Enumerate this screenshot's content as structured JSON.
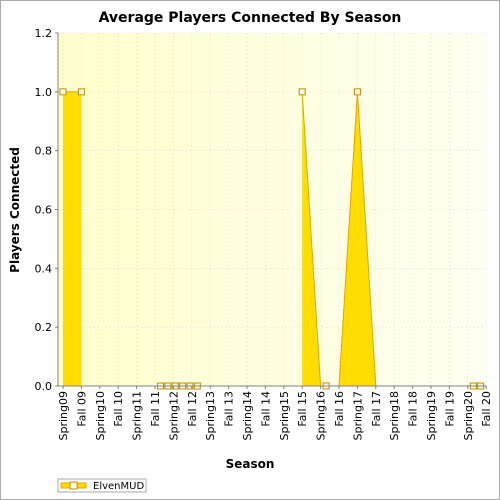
{
  "chart_data": {
    "type": "area",
    "title": "Average Players Connected By Season",
    "xlabel": "Season",
    "ylabel": "Players Connected",
    "ylim": [
      0,
      1.2
    ],
    "yticks": [
      "0.0",
      "0.2",
      "0.4",
      "0.6",
      "0.8",
      "1.0",
      "1.2"
    ],
    "categories": [
      "Spring09",
      "Fall 09",
      "Spring10",
      "Fall 10",
      "Spring11",
      "Fall 11",
      "Spring12",
      "Fall 12",
      "Spring13",
      "Fall 13",
      "Spring14",
      "Fall 14",
      "Spring15",
      "Fall 15",
      "Spring16",
      "Fall 16",
      "Spring17",
      "Fall 17",
      "Spring18",
      "Fall 18",
      "Spring19",
      "Fall 19",
      "Spring20",
      "Fall 20"
    ],
    "series": [
      {
        "name": "ElvenMUD",
        "color": "#ffdd00",
        "line_color": "#e3a400",
        "marked_x": [
          0,
          1,
          13,
          16
        ],
        "zero_marked_x": [
          5.3,
          5.7,
          6.1,
          6.5,
          6.9,
          7.3,
          14.3,
          22.3,
          22.7
        ],
        "values": [
          1.0,
          1.0,
          null,
          null,
          null,
          null,
          0,
          0,
          0,
          0,
          0,
          0,
          null,
          1.0,
          0,
          0,
          1.0,
          0,
          0,
          0,
          0,
          0,
          0,
          0
        ]
      }
    ],
    "grid": true,
    "legend": "bottom-left"
  }
}
